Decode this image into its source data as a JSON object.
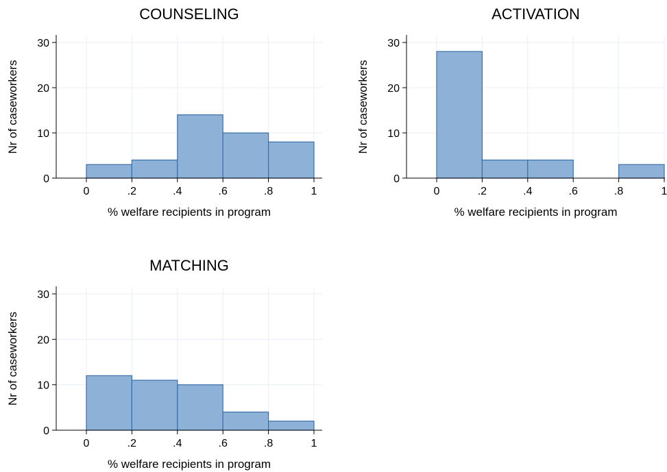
{
  "style": {
    "bar_fill": "#8eb1d8",
    "bar_stroke": "#3b6ea8",
    "grid_color": "#e8eef4",
    "axis_color": "#000000"
  },
  "chart_data": [
    {
      "type": "bar",
      "title": "COUNSELING",
      "xlabel": "% welfare recipients in program",
      "ylabel": "Nr of caseworkers",
      "xlim": [
        -0.2,
        1.0
      ],
      "ylim": [
        0,
        30
      ],
      "xticks": [
        0,
        0.2,
        0.4,
        0.6,
        0.8,
        1.0
      ],
      "xtick_labels": [
        "0",
        ".2",
        ".4",
        ".6",
        ".8",
        "1"
      ],
      "yticks": [
        0,
        10,
        20,
        30
      ],
      "ytick_labels": [
        "0",
        "10",
        "20",
        "30"
      ],
      "grid": true,
      "bins": [
        {
          "from": 0.0,
          "to": 0.2,
          "value": 3
        },
        {
          "from": 0.2,
          "to": 0.4,
          "value": 4
        },
        {
          "from": 0.4,
          "to": 0.6,
          "value": 14
        },
        {
          "from": 0.6,
          "to": 0.8,
          "value": 10
        },
        {
          "from": 0.8,
          "to": 1.0,
          "value": 8
        }
      ]
    },
    {
      "type": "bar",
      "title": "ACTIVATION",
      "xlabel": "% welfare recipients in program",
      "ylabel": "Nr of caseworkers",
      "xlim": [
        -0.2,
        1.0
      ],
      "ylim": [
        0,
        30
      ],
      "xticks": [
        0,
        0.2,
        0.4,
        0.6,
        0.8,
        1.0
      ],
      "xtick_labels": [
        "0",
        ".2",
        ".4",
        ".6",
        ".8",
        "1"
      ],
      "yticks": [
        0,
        10,
        20,
        30
      ],
      "ytick_labels": [
        "0",
        "10",
        "20",
        "30"
      ],
      "grid": true,
      "bins": [
        {
          "from": 0.0,
          "to": 0.2,
          "value": 28
        },
        {
          "from": 0.2,
          "to": 0.4,
          "value": 4
        },
        {
          "from": 0.4,
          "to": 0.6,
          "value": 4
        },
        {
          "from": 0.6,
          "to": 0.8,
          "value": 0
        },
        {
          "from": 0.8,
          "to": 1.0,
          "value": 3
        }
      ]
    },
    {
      "type": "bar",
      "title": "MATCHING",
      "xlabel": "% welfare recipients in program",
      "ylabel": "Nr of caseworkers",
      "xlim": [
        -0.2,
        1.0
      ],
      "ylim": [
        0,
        30
      ],
      "xticks": [
        0,
        0.2,
        0.4,
        0.6,
        0.8,
        1.0
      ],
      "xtick_labels": [
        "0",
        ".2",
        ".4",
        ".6",
        ".8",
        "1"
      ],
      "yticks": [
        0,
        10,
        20,
        30
      ],
      "ytick_labels": [
        "0",
        "10",
        "20",
        "30"
      ],
      "grid": true,
      "bins": [
        {
          "from": 0.0,
          "to": 0.2,
          "value": 12
        },
        {
          "from": 0.2,
          "to": 0.4,
          "value": 11
        },
        {
          "from": 0.4,
          "to": 0.6,
          "value": 10
        },
        {
          "from": 0.6,
          "to": 0.8,
          "value": 4
        },
        {
          "from": 0.8,
          "to": 1.0,
          "value": 2
        }
      ]
    }
  ]
}
